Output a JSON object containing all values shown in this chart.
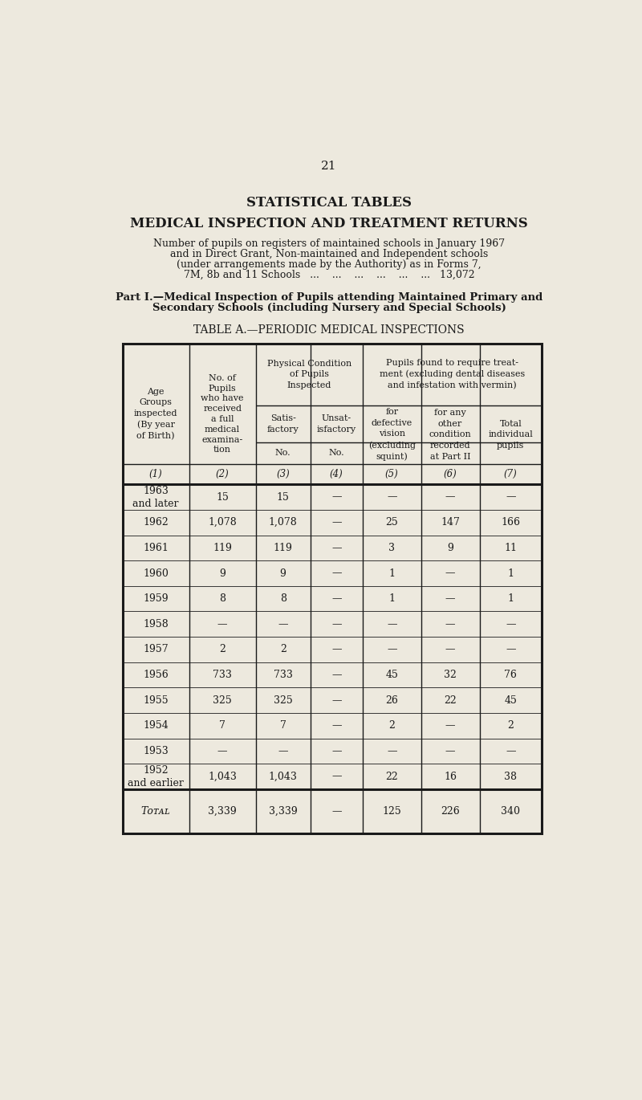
{
  "page_number": "21",
  "title1": "STATISTICAL TABLES",
  "title2": "MEDICAL INSPECTION AND TREATMENT RETURNS",
  "intro_lines": [
    "Number of pupils on registers of maintained schools in January 1967",
    "and in Direct Grant, Non-maintained and Independent schools",
    "(under arrangements made by the Authority) as in Forms 7,",
    "7M, 8b and 11 Schools   ...    ...    ...    ...    ...    ...   13,072"
  ],
  "part_lines": [
    "Part I.—Medical Inspection of Pupils attending Maintained Primary and",
    "Secondary Schools (including Nursery and Special Schools)"
  ],
  "table_title": "TABLE A.—PERIODIC MEDICAL INSPECTIONS",
  "col_numbers": [
    "(1)",
    "(2)",
    "(3)",
    "(4)",
    "(5)",
    "(6)",
    "(7)"
  ],
  "rows": [
    {
      "age": "1963\nand later",
      "col2": "15",
      "col3": "15",
      "col4": "—",
      "col5": "—",
      "col6": "—",
      "col7": "—"
    },
    {
      "age": "1962",
      "col2": "1,078",
      "col3": "1,078",
      "col4": "—",
      "col5": "25",
      "col6": "147",
      "col7": "166"
    },
    {
      "age": "1961",
      "col2": "119",
      "col3": "119",
      "col4": "—",
      "col5": "3",
      "col6": "9",
      "col7": "11"
    },
    {
      "age": "1960",
      "col2": "9",
      "col3": "9",
      "col4": "—",
      "col5": "1",
      "col6": "—",
      "col7": "1"
    },
    {
      "age": "1959",
      "col2": "8",
      "col3": "8",
      "col4": "—",
      "col5": "1",
      "col6": "—",
      "col7": "1"
    },
    {
      "age": "1958",
      "col2": "—",
      "col3": "—",
      "col4": "—",
      "col5": "—",
      "col6": "—",
      "col7": "—"
    },
    {
      "age": "1957",
      "col2": "2",
      "col3": "2",
      "col4": "—",
      "col5": "—",
      "col6": "—",
      "col7": "—"
    },
    {
      "age": "1956",
      "col2": "733",
      "col3": "733",
      "col4": "—",
      "col5": "45",
      "col6": "32",
      "col7": "76"
    },
    {
      "age": "1955",
      "col2": "325",
      "col3": "325",
      "col4": "—",
      "col5": "26",
      "col6": "22",
      "col7": "45"
    },
    {
      "age": "1954",
      "col2": "7",
      "col3": "7",
      "col4": "—",
      "col5": "2",
      "col6": "—",
      "col7": "2"
    },
    {
      "age": "1953",
      "col2": "—",
      "col3": "—",
      "col4": "—",
      "col5": "—",
      "col6": "—",
      "col7": "—"
    },
    {
      "age": "1952\nand earlier",
      "col2": "1,043",
      "col3": "1,043",
      "col4": "—",
      "col5": "22",
      "col6": "16",
      "col7": "38"
    }
  ],
  "total_row": {
    "age": "Total",
    "col2": "3,339",
    "col3": "3,339",
    "col4": "—",
    "col5": "125",
    "col6": "226",
    "col7": "340"
  },
  "paper_color": "#ede9de",
  "text_color": "#1a1a1a",
  "border_color": "#1a1a1a"
}
